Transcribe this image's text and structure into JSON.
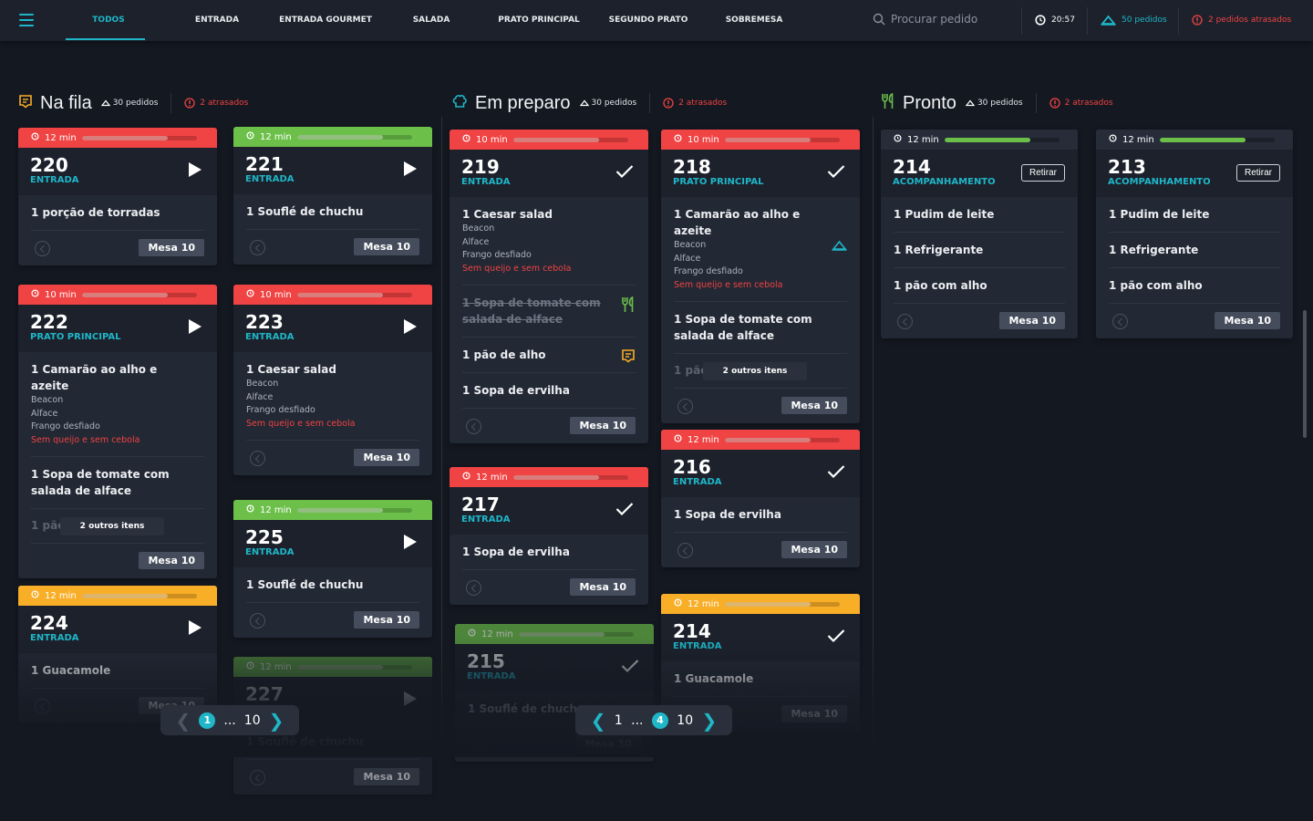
{
  "header": {
    "tabs": [
      "TODOS",
      "ENTRADA",
      "ENTRADA GOURMET",
      "SALADA",
      "PRATO PRINCIPAL",
      "SEGUNDO PRATO",
      "SOBREMESA"
    ],
    "active_tab": "TODOS",
    "search_placeholder": "Procurar pedido",
    "time": "20:57",
    "orders": "50 pedidos",
    "late": "2 pedidos atrasados"
  },
  "colors": {
    "accent": "#1fb6c8",
    "late": "#f04343",
    "ok": "#6cc04a",
    "warn": "#f8ae27"
  },
  "columns": [
    {
      "title": "Na fila",
      "icon": "receipt-icon",
      "count": "30 pedidos",
      "late": "2 atrasados",
      "pagination": {
        "pages": [
          "1",
          "...",
          "10"
        ],
        "current": "1"
      },
      "cards": [
        {
          "timer": "12 min",
          "status": "late",
          "progress": 0.75,
          "number": "220",
          "category": "ENTRADA",
          "action": "play",
          "items": [
            {
              "text": "1 porção de torradas"
            }
          ],
          "mesa": "Mesa 10"
        },
        {
          "timer": "10 min",
          "status": "late",
          "progress": 0.75,
          "number": "222",
          "category": "PRATO PRINCIPAL",
          "action": "play",
          "items": [
            {
              "text": "1 Camarão ao alho e azeite",
              "mods": [
                "Beacon",
                "Alface",
                "Frango desfiado"
              ],
              "note": "Sem queijo e sem cebola"
            },
            {
              "text": "1 Sopa de tomate com salada de alface"
            }
          ],
          "more": {
            "faded": "1 pão",
            "label": "2 outros itens"
          },
          "mesa": "Mesa 10"
        },
        {
          "timer": "12 min",
          "status": "warn",
          "progress": 0.75,
          "number": "224",
          "category": "ENTRADA",
          "action": "play",
          "items": [
            {
              "text": "1 Guacamole"
            }
          ],
          "mesa": "Mesa 10"
        },
        {
          "timer": "12 min",
          "status": "ok",
          "progress": 0.75,
          "number": "221",
          "category": "ENTRADA",
          "action": "play",
          "items": [
            {
              "text": "1 Souflé de chuchu"
            }
          ],
          "mesa": "Mesa 10"
        },
        {
          "timer": "10 min",
          "status": "late",
          "progress": 0.75,
          "number": "223",
          "category": "ENTRADA",
          "action": "play",
          "items": [
            {
              "text": "1 Caesar salad",
              "mods": [
                "Beacon",
                "Alface",
                "Frango desfiado"
              ],
              "note": "Sem queijo e sem cebola"
            }
          ],
          "mesa": "Mesa 10"
        },
        {
          "timer": "12 min",
          "status": "ok",
          "progress": 0.75,
          "number": "225",
          "category": "ENTRADA",
          "action": "play",
          "items": [
            {
              "text": "1 Souflé de chuchu"
            }
          ],
          "mesa": "Mesa 10"
        },
        {
          "timer": "12 min",
          "status": "ok",
          "progress": 0.75,
          "number": "227",
          "category": "ENTRADA",
          "action": "play",
          "items": [
            {
              "text": "1 Souflé de chuchu"
            }
          ],
          "mesa": "Mesa 10"
        }
      ]
    },
    {
      "title": "Em preparo",
      "icon": "chef-hat-icon",
      "count": "30 pedidos",
      "late": "2 atrasados",
      "pagination": {
        "pages": [
          "1",
          "...",
          "4",
          "10"
        ],
        "current": "4"
      },
      "cards": [
        {
          "timer": "10 min",
          "status": "late",
          "progress": 0.75,
          "number": "219",
          "category": "ENTRADA",
          "action": "check",
          "items": [
            {
              "text": "1 Caesar salad",
              "mods": [
                "Beacon",
                "Alface",
                "Frango desfiado"
              ],
              "note": "Sem queijo e sem cebola"
            },
            {
              "text": "1 Sopa de tomate com salada de alface",
              "strike": true,
              "icon": "fork-knife-icon"
            },
            {
              "text": "1 pão de alho",
              "icon": "receipt-icon"
            },
            {
              "text": "1 Sopa de ervilha"
            }
          ],
          "mesa": "Mesa 10"
        },
        {
          "timer": "12 min",
          "status": "late",
          "progress": 0.75,
          "number": "217",
          "category": "ENTRADA",
          "action": "check",
          "items": [
            {
              "text": "1 Sopa de ervilha"
            }
          ],
          "mesa": "Mesa 10"
        },
        {
          "timer": "12 min",
          "status": "ok",
          "progress": 0.75,
          "number": "215",
          "category": "ENTRADA",
          "action": "check",
          "items": [
            {
              "text": "1 Souflé de chuchu"
            }
          ],
          "mesa": "Mesa 10"
        },
        {
          "timer": "10 min",
          "status": "late",
          "progress": 0.75,
          "number": "218",
          "category": "PRATO PRINCIPAL",
          "action": "check",
          "items": [
            {
              "text": "1 Camarão ao alho e azeite",
              "mods": [
                "Beacon",
                "Alface",
                "Frango desfiado"
              ],
              "note": "Sem queijo e sem cebola",
              "icon": "cloche-icon"
            },
            {
              "text": "1 Sopa de tomate com salada de alface"
            }
          ],
          "more": {
            "faded": "1 pão",
            "label": "2 outros itens"
          },
          "mesa": "Mesa 10"
        },
        {
          "timer": "12 min",
          "status": "late",
          "progress": 0.75,
          "number": "216",
          "category": "ENTRADA",
          "action": "check",
          "items": [
            {
              "text": "1 Sopa de ervilha"
            }
          ],
          "mesa": "Mesa 10"
        },
        {
          "timer": "12 min",
          "status": "warn",
          "progress": 0.75,
          "number": "214",
          "category": "ENTRADA",
          "action": "check",
          "items": [
            {
              "text": "1 Guacamole"
            }
          ],
          "mesa": "Mesa 10"
        }
      ]
    },
    {
      "title": "Pronto",
      "icon": "fork-knife-icon",
      "count": "30 pedidos",
      "late": "2 atrasados",
      "cards": [
        {
          "timer": "12 min",
          "status": "ready",
          "progress": 0.75,
          "number": "214",
          "category": "ACOMPANHAMENTO",
          "action": "Retirar",
          "items": [
            {
              "text": "1 Pudim de leite"
            },
            {
              "text": "1 Refrigerante"
            },
            {
              "text": "1 pão com alho"
            }
          ],
          "mesa": "Mesa 10"
        },
        {
          "timer": "12 min",
          "status": "ready",
          "progress": 0.75,
          "number": "213",
          "category": "ACOMPANHAMENTO",
          "action": "Retirar",
          "items": [
            {
              "text": "1 Pudim de leite"
            },
            {
              "text": "1 Refrigerante"
            },
            {
              "text": "1 pão com alho"
            }
          ],
          "mesa": "Mesa 10"
        }
      ]
    }
  ]
}
